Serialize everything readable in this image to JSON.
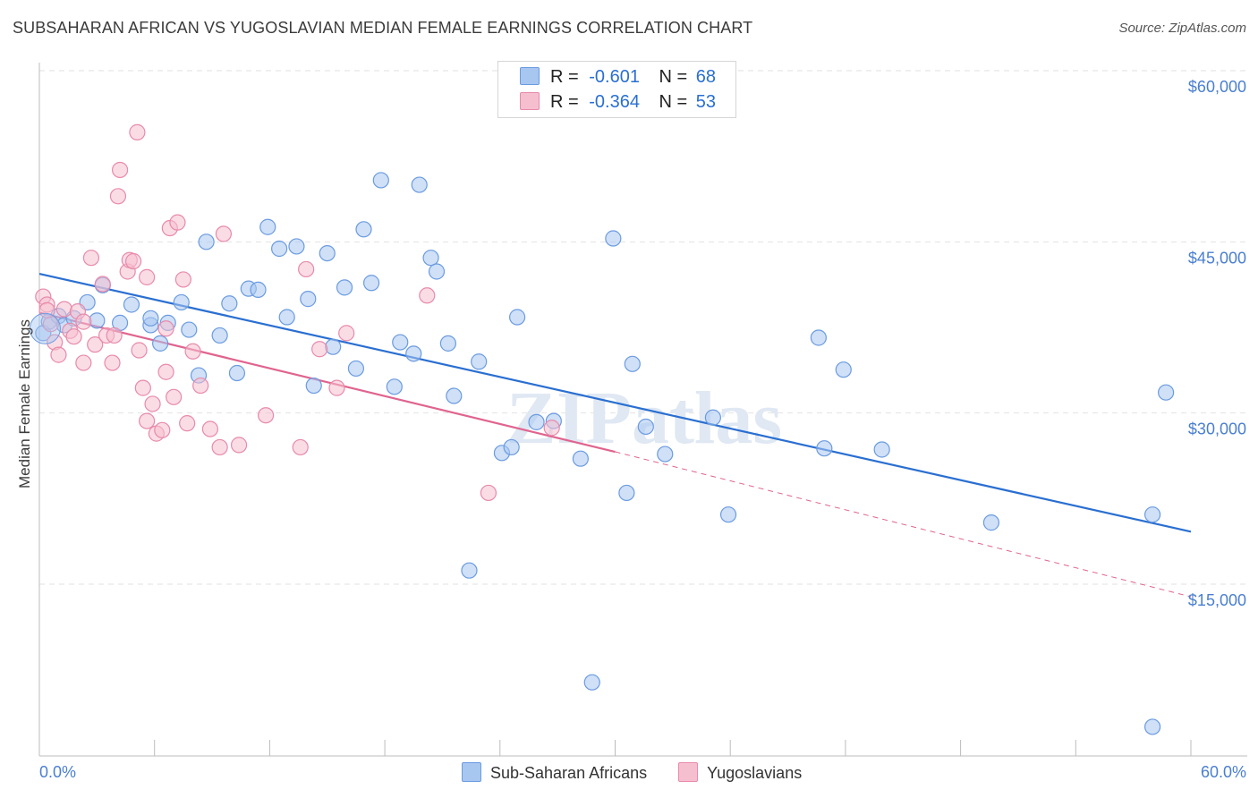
{
  "title": "SUBSAHARAN AFRICAN VS YUGOSLAVIAN MEDIAN FEMALE EARNINGS CORRELATION CHART",
  "source": "Source: ZipAtlas.com",
  "watermark": "ZIPatlas",
  "legend": {
    "rows": [
      {
        "r_label": "R =",
        "r_value": "-0.601",
        "n_label": "N =",
        "n_value": "68",
        "color": "#a7c6f0",
        "border": "#6b9be0"
      },
      {
        "r_label": "R =",
        "r_value": "-0.364",
        "n_label": "N =",
        "n_value": "53",
        "color": "#f6bfd0",
        "border": "#e88aab"
      }
    ]
  },
  "bottom_legend": [
    "Sub-Saharan Africans",
    "Yugoslavians"
  ],
  "chart_data": {
    "type": "scatter",
    "ylabel": "Median Female Earnings",
    "xlim": [
      0,
      60
    ],
    "ylim": [
      0,
      62000
    ],
    "x_tick_labels": [
      "0.0%",
      "60.0%"
    ],
    "y_ticks": [
      15000,
      30000,
      45000,
      60000
    ],
    "y_tick_labels": [
      "$15,000",
      "$30,000",
      "$45,000",
      "$60,000"
    ],
    "colors": {
      "blue_fill": "#a7c6f0",
      "blue_stroke": "#6b9be0",
      "blue_line": "#2a6fd1",
      "pink_fill": "#f6bfd0",
      "pink_stroke": "#e88aab",
      "pink_line": "#e0648f"
    },
    "series": [
      {
        "name": "Sub-Saharan Africans",
        "color": "#a7c6f0",
        "trend": {
          "x": [
            0,
            60
          ],
          "y": [
            42200,
            19600
          ]
        },
        "points": [
          [
            0.2,
            37000
          ],
          [
            0.5,
            38000
          ],
          [
            1.0,
            38500
          ],
          [
            1.3,
            37700
          ],
          [
            1.8,
            38300
          ],
          [
            2.5,
            39700
          ],
          [
            3.3,
            41200
          ],
          [
            3.0,
            38100
          ],
          [
            4.2,
            37900
          ],
          [
            4.8,
            39500
          ],
          [
            5.8,
            37700
          ],
          [
            5.8,
            38300
          ],
          [
            6.3,
            36100
          ],
          [
            6.7,
            37900
          ],
          [
            7.4,
            39700
          ],
          [
            7.8,
            37300
          ],
          [
            8.3,
            33300
          ],
          [
            8.7,
            45000
          ],
          [
            9.4,
            36800
          ],
          [
            9.9,
            39600
          ],
          [
            10.3,
            33500
          ],
          [
            10.9,
            40900
          ],
          [
            11.4,
            40800
          ],
          [
            11.9,
            46300
          ],
          [
            12.5,
            44400
          ],
          [
            12.9,
            38400
          ],
          [
            13.4,
            44600
          ],
          [
            14.0,
            40000
          ],
          [
            14.3,
            32400
          ],
          [
            15.0,
            44000
          ],
          [
            15.3,
            35800
          ],
          [
            15.9,
            41000
          ],
          [
            16.5,
            33900
          ],
          [
            16.9,
            46100
          ],
          [
            17.3,
            41400
          ],
          [
            17.8,
            50400
          ],
          [
            18.5,
            32300
          ],
          [
            18.8,
            36200
          ],
          [
            19.5,
            35200
          ],
          [
            19.8,
            50000
          ],
          [
            20.4,
            43600
          ],
          [
            20.7,
            42400
          ],
          [
            21.3,
            36100
          ],
          [
            21.6,
            31500
          ],
          [
            22.9,
            34500
          ],
          [
            22.4,
            16200
          ],
          [
            24.1,
            26500
          ],
          [
            24.6,
            27000
          ],
          [
            24.9,
            38400
          ],
          [
            25.9,
            29200
          ],
          [
            26.8,
            29300
          ],
          [
            28.2,
            26000
          ],
          [
            28.8,
            6400
          ],
          [
            29.9,
            45300
          ],
          [
            30.6,
            23000
          ],
          [
            30.9,
            34300
          ],
          [
            31.6,
            28800
          ],
          [
            32.6,
            26400
          ],
          [
            35.1,
            29600
          ],
          [
            35.9,
            21100
          ],
          [
            40.6,
            36600
          ],
          [
            40.9,
            26900
          ],
          [
            41.9,
            33800
          ],
          [
            43.9,
            26800
          ],
          [
            49.6,
            20400
          ],
          [
            58.0,
            21100
          ],
          [
            58.0,
            2500
          ],
          [
            58.7,
            31800
          ]
        ]
      },
      {
        "name": "Yugoslavians",
        "color": "#f6bfd0",
        "trend": {
          "x": [
            0,
            30
          ],
          "y": [
            38800,
            26600
          ]
        },
        "trend_dashed": {
          "x": [
            30,
            60
          ],
          "y": [
            26600,
            13900
          ]
        },
        "points": [
          [
            0.2,
            40200
          ],
          [
            0.4,
            39500
          ],
          [
            0.6,
            37800
          ],
          [
            0.8,
            36200
          ],
          [
            1.0,
            35100
          ],
          [
            1.3,
            39100
          ],
          [
            1.6,
            37200
          ],
          [
            1.8,
            36700
          ],
          [
            2.0,
            38900
          ],
          [
            2.3,
            34400
          ],
          [
            2.7,
            43600
          ],
          [
            2.9,
            36000
          ],
          [
            3.3,
            41300
          ],
          [
            3.5,
            36800
          ],
          [
            3.8,
            34400
          ],
          [
            3.9,
            36800
          ],
          [
            4.2,
            51300
          ],
          [
            4.1,
            49000
          ],
          [
            4.6,
            42400
          ],
          [
            4.7,
            43400
          ],
          [
            4.9,
            43300
          ],
          [
            5.1,
            54600
          ],
          [
            5.2,
            35500
          ],
          [
            5.4,
            32200
          ],
          [
            5.6,
            41900
          ],
          [
            5.6,
            29300
          ],
          [
            5.9,
            30800
          ],
          [
            6.1,
            28200
          ],
          [
            6.4,
            28500
          ],
          [
            6.6,
            33600
          ],
          [
            6.6,
            37400
          ],
          [
            6.8,
            46200
          ],
          [
            7.0,
            31400
          ],
          [
            7.2,
            46700
          ],
          [
            7.5,
            41700
          ],
          [
            7.7,
            29100
          ],
          [
            8.0,
            35400
          ],
          [
            8.4,
            32400
          ],
          [
            8.9,
            28600
          ],
          [
            9.4,
            27000
          ],
          [
            9.6,
            45700
          ],
          [
            10.4,
            27200
          ],
          [
            11.8,
            29800
          ],
          [
            13.6,
            27000
          ],
          [
            13.9,
            42600
          ],
          [
            14.6,
            35600
          ],
          [
            15.5,
            32200
          ],
          [
            16.0,
            37000
          ],
          [
            20.2,
            40300
          ],
          [
            23.4,
            23000
          ],
          [
            26.7,
            28700
          ],
          [
            2.3,
            38000
          ],
          [
            0.4,
            39000
          ]
        ]
      }
    ]
  }
}
